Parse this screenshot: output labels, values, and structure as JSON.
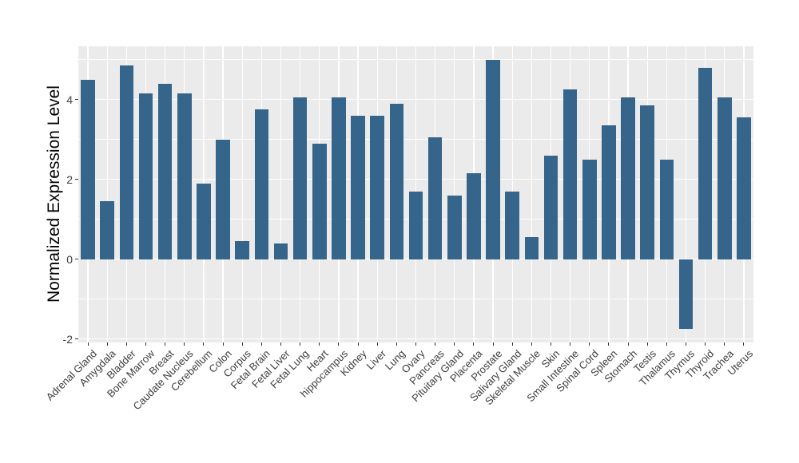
{
  "figure": {
    "background": "#ffffff",
    "panel_background": "#EBEBEB",
    "grid_color": "#FFFFFF",
    "bar_color": "#36658B",
    "tick_color": "#333333",
    "axis_text_color": "#3d3d3d",
    "axis_title_color": "#000000"
  },
  "chart_data": {
    "type": "bar",
    "title": "",
    "xlabel": "",
    "ylabel": "Normalized Expression Level",
    "legend": false,
    "grid": true,
    "ylim": [
      -2.09,
      5.33
    ],
    "y_major_ticks": [
      4,
      2,
      0,
      -2
    ],
    "y_minor_gridlines": [
      5,
      3,
      1,
      -1
    ],
    "categories": [
      "Adrenal Gland",
      "Amygdala",
      "Bladder",
      "Bone Marrow",
      "Breast",
      "Caudate Nucleus",
      "Cerebellum",
      "Colon",
      "Corpus",
      "Fetal Brain",
      "Fetal Liver",
      "Fetal Lung",
      "Heart",
      "hippocampus",
      "Kidney",
      "Liver",
      "Lung",
      "Ovary",
      "Pancreas",
      "Pituitary Gland",
      "Placenta",
      "Prostate",
      "Salivary Gland",
      "Skeletal Muscle",
      "Skin",
      "Small Intestine",
      "Spinal Cord",
      "Spleen",
      "Stomach",
      "Testis",
      "Thalamus",
      "Thymus",
      "Thyroid",
      "Trachea",
      "Uterus"
    ],
    "values": [
      4.5,
      1.45,
      4.85,
      4.15,
      4.4,
      4.15,
      1.9,
      3.0,
      0.45,
      3.75,
      0.4,
      4.05,
      2.9,
      4.05,
      3.6,
      3.6,
      3.9,
      1.7,
      3.05,
      1.6,
      2.15,
      5.0,
      1.7,
      0.55,
      2.6,
      4.25,
      2.5,
      3.35,
      4.05,
      3.85,
      2.5,
      -1.75,
      4.8,
      4.05,
      3.55
    ]
  }
}
